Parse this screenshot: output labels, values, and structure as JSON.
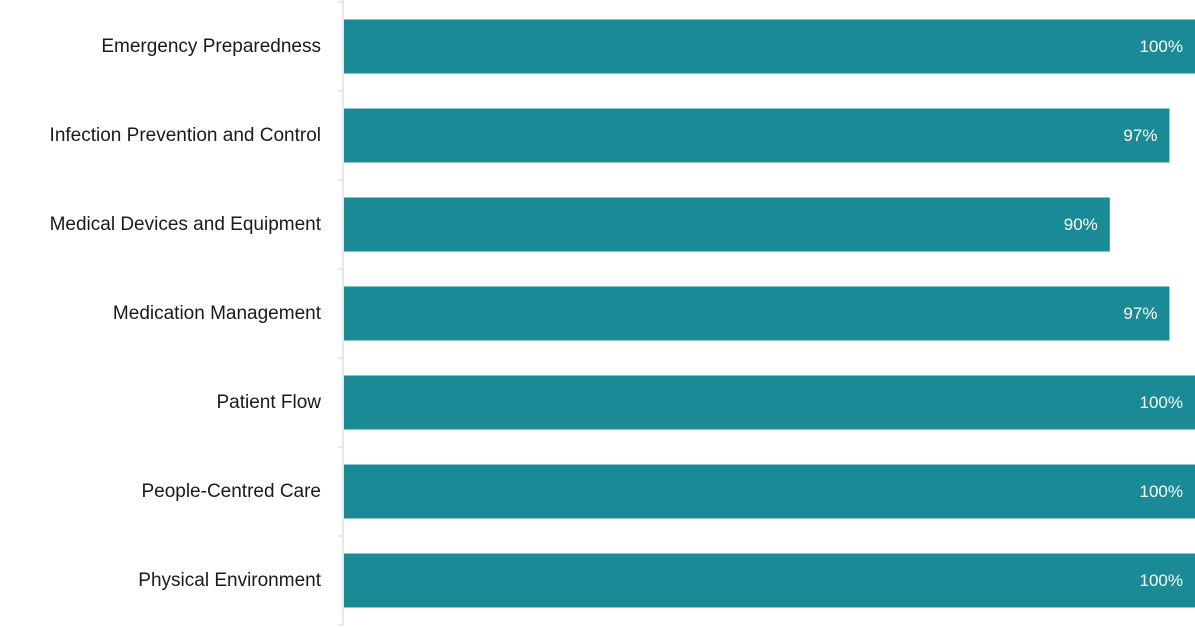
{
  "chart_data": {
    "type": "bar",
    "orientation": "horizontal",
    "categories": [
      "Emergency Preparedness",
      "Infection Prevention and Control",
      "Medical Devices and Equipment",
      "Medication Management",
      "Patient Flow",
      "People-Centred Care",
      "Physical Environment"
    ],
    "values": [
      100,
      97,
      90,
      97,
      100,
      100,
      100
    ],
    "value_labels": [
      "100%",
      "97%",
      "90%",
      "97%",
      "100%",
      "100%",
      "100%"
    ],
    "xlim": [
      0,
      100
    ],
    "bar_color": "#1a8a96",
    "axis_color": "#d0d0d0",
    "grid": false,
    "legend": "none"
  }
}
